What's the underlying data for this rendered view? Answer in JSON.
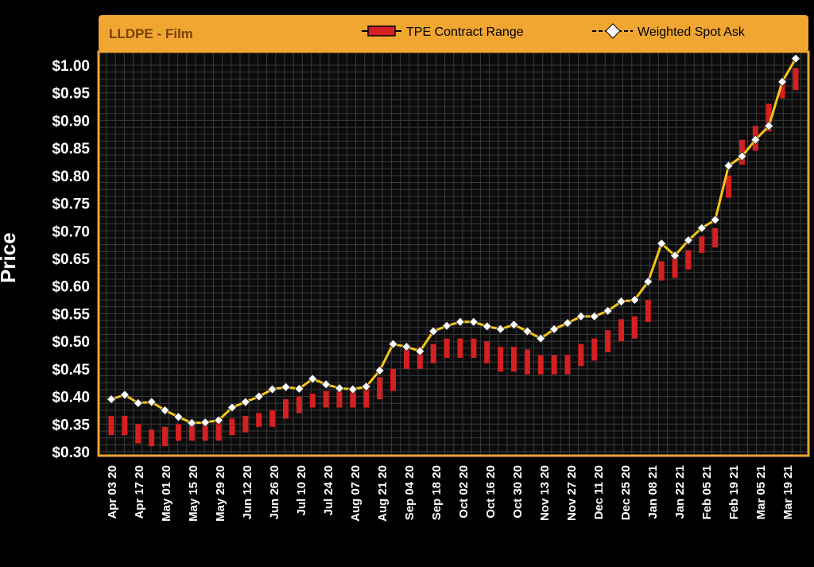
{
  "chart_data": {
    "type": "line",
    "title": "LLDPE - Film",
    "ylabel": "Price",
    "xlabel": "",
    "ylim": [
      0.3,
      1.01
    ],
    "yticks": [
      "$1.00",
      "$0.95",
      "$0.90",
      "$0.85",
      "$0.80",
      "$0.75",
      "$0.70",
      "$0.65",
      "$0.60",
      "$0.55",
      "$0.50",
      "$0.45",
      "$0.40",
      "$0.35",
      "$0.30"
    ],
    "ytick_values": [
      1.0,
      0.95,
      0.9,
      0.85,
      0.8,
      0.75,
      0.7,
      0.65,
      0.6,
      0.55,
      0.5,
      0.45,
      0.4,
      0.35,
      0.3
    ],
    "xtick_labels": [
      "Apr 03 20",
      "Apr 17 20",
      "May 01 20",
      "May 15 20",
      "May 29 20",
      "Jun 12 20",
      "Jun 26 20",
      "Jul 10 20",
      "Jul 24 20",
      "Aug 07 20",
      "Aug 21 20",
      "Sep 04 20",
      "Sep 18 20",
      "Oct 02 20",
      "Oct 16 20",
      "Oct 30 20",
      "Nov 13 20",
      "Nov 27 20",
      "Dec 11 20",
      "Dec 25 20",
      "Jan 08 21",
      "Jan 22 21",
      "Feb 05 21",
      "Feb 19 21",
      "Mar 05 21",
      "Mar 19 21"
    ],
    "legend": [
      "TPE Contract Range",
      "Weighted Spot Ask"
    ],
    "series": [
      {
        "name": "Weighted Spot Ask",
        "color": "#f5c518",
        "values": [
          0.395,
          0.403,
          0.388,
          0.39,
          0.375,
          0.363,
          0.352,
          0.353,
          0.357,
          0.38,
          0.39,
          0.4,
          0.413,
          0.417,
          0.414,
          0.432,
          0.422,
          0.415,
          0.413,
          0.418,
          0.447,
          0.495,
          0.49,
          0.482,
          0.518,
          0.528,
          0.535,
          0.535,
          0.527,
          0.522,
          0.53,
          0.518,
          0.505,
          0.522,
          0.533,
          0.545,
          0.545,
          0.555,
          0.572,
          0.575,
          0.608,
          0.677,
          0.655,
          0.683,
          0.705,
          0.72,
          0.818,
          0.835,
          0.865,
          0.89,
          0.97,
          1.012
        ]
      },
      {
        "name": "TPE Contract Range",
        "color": "#d42020",
        "low": [
          0.33,
          0.33,
          0.315,
          0.31,
          0.31,
          0.32,
          0.32,
          0.32,
          0.32,
          0.33,
          0.335,
          0.345,
          0.345,
          0.36,
          0.37,
          0.38,
          0.38,
          0.38,
          0.38,
          0.38,
          0.395,
          0.41,
          0.45,
          0.45,
          0.46,
          0.47,
          0.47,
          0.47,
          0.46,
          0.445,
          0.445,
          0.44,
          0.44,
          0.44,
          0.44,
          0.455,
          0.465,
          0.48,
          0.5,
          0.505,
          0.535,
          0.61,
          0.615,
          0.63,
          0.66,
          0.67,
          0.76,
          0.82,
          0.845,
          0.88,
          0.94,
          0.955
        ],
        "high": [
          0.365,
          0.365,
          0.35,
          0.34,
          0.345,
          0.35,
          0.355,
          0.355,
          0.355,
          0.36,
          0.365,
          0.37,
          0.375,
          0.395,
          0.4,
          0.405,
          0.41,
          0.41,
          0.415,
          0.42,
          0.435,
          0.45,
          0.485,
          0.49,
          0.495,
          0.505,
          0.505,
          0.505,
          0.5,
          0.49,
          0.49,
          0.485,
          0.475,
          0.475,
          0.475,
          0.495,
          0.505,
          0.52,
          0.54,
          0.545,
          0.575,
          0.645,
          0.65,
          0.665,
          0.69,
          0.705,
          0.8,
          0.865,
          0.89,
          0.93,
          0.975,
          0.995
        ]
      }
    ]
  },
  "colors": {
    "header_bg": "#f0a631",
    "border": "#f0a631",
    "plot_bg": "#0b0b0b",
    "grid": "#3a3a3a",
    "line": "#f5c518",
    "marker": "#ffffff",
    "bar": "#d42020",
    "axis_text": "#ffffff"
  }
}
